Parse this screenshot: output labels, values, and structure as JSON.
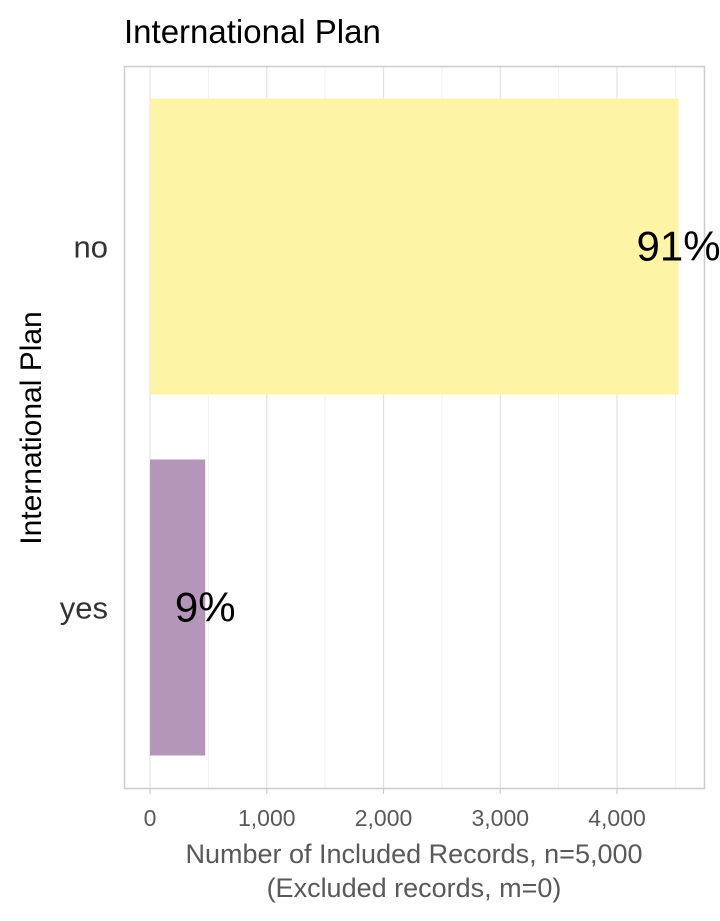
{
  "chart_data": {
    "type": "bar",
    "orientation": "horizontal",
    "title": "International Plan",
    "ylabel": "International Plan",
    "xlabel_line1": "Number of Included Records, n=5,000",
    "xlabel_line2": "(Excluded records, m=0)",
    "categories": [
      "no",
      "yes"
    ],
    "values": [
      4527,
      473
    ],
    "percent_labels": [
      "91%",
      "9%"
    ],
    "colors": [
      "#fdf4a6",
      "#b497b8"
    ],
    "xlim": [
      0,
      4720
    ],
    "x_ticks": [
      0,
      1000,
      2000,
      3000,
      4000
    ],
    "x_tick_labels": [
      "0",
      "1,000",
      "2,000",
      "3,000",
      "4,000"
    ],
    "grid": true,
    "legend": "none"
  }
}
